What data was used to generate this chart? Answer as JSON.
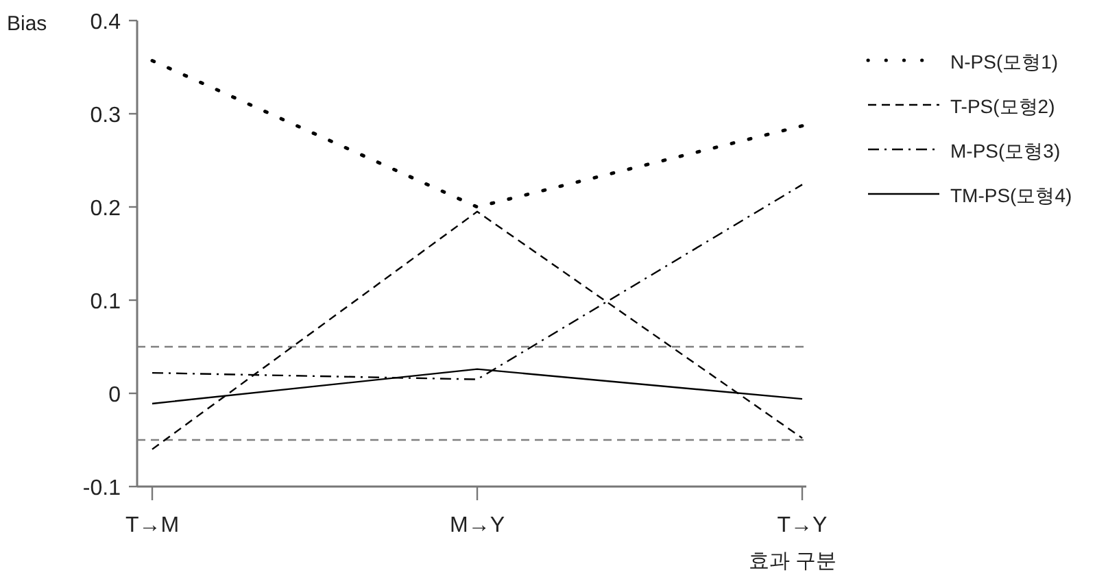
{
  "chart_data": {
    "type": "line",
    "ylabel": "Bias",
    "xlabel": "효과 구분",
    "categories": [
      "T→M",
      "M→Y",
      "T→Y"
    ],
    "ylim": [
      -0.1,
      0.4
    ],
    "yticks": [
      -0.1,
      0,
      0.1,
      0.2,
      0.3,
      0.4
    ],
    "series": [
      {
        "name": "N-PS(모형1)",
        "color": "#000000",
        "line_style": "dotted",
        "values": [
          0.357,
          0.2,
          0.287
        ]
      },
      {
        "name": "T-PS(모형2)",
        "color": "#000000",
        "line_style": "dashed",
        "values": [
          -0.06,
          0.195,
          -0.048
        ]
      },
      {
        "name": "M-PS(모형3)",
        "color": "#000000",
        "line_style": "dashdot",
        "values": [
          0.022,
          0.015,
          0.224
        ]
      },
      {
        "name": "TM-PS(모형4)",
        "color": "#000000",
        "line_style": "solid",
        "values": [
          -0.011,
          0.026,
          -0.006
        ]
      }
    ],
    "ref_lines": [
      {
        "axis": "y",
        "value": 0.05,
        "color": "#808080",
        "line_style": "dashed"
      },
      {
        "axis": "y",
        "value": -0.05,
        "color": "#808080",
        "line_style": "dashed"
      }
    ],
    "legend": "right",
    "grid": false,
    "marker": "none"
  }
}
